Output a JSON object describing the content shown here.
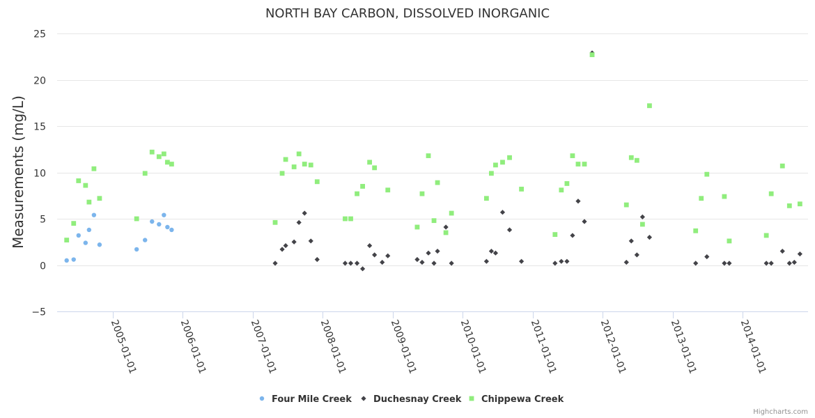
{
  "chart_data": {
    "type": "scatter",
    "title": "NORTH BAY CARBON, DISSOLVED INORGANIC",
    "xlabel": "",
    "ylabel": "Measurements (mg/L)",
    "ylim": [
      -5,
      25
    ],
    "yticks": [
      -5,
      0,
      5,
      10,
      15,
      20,
      25
    ],
    "xlim": [
      2004.25,
      2015.0
    ],
    "xticks": [
      {
        "value": 2005,
        "label": "2005-01-01"
      },
      {
        "value": 2006,
        "label": "2006-01-01"
      },
      {
        "value": 2007,
        "label": "2007-01-01"
      },
      {
        "value": 2008,
        "label": "2008-01-01"
      },
      {
        "value": 2009,
        "label": "2009-01-01"
      },
      {
        "value": 2010,
        "label": "2010-01-01"
      },
      {
        "value": 2011,
        "label": "2011-01-01"
      },
      {
        "value": 2012,
        "label": "2012-01-01"
      },
      {
        "value": 2013,
        "label": "2013-01-01"
      },
      {
        "value": 2014,
        "label": "2014-01-01"
      }
    ],
    "grid": "horizontal",
    "legend": "bottom-center",
    "series": [
      {
        "name": "Four Mile Creek",
        "color": "#7cb5ec",
        "marker": "circle",
        "points": [
          [
            2004.34,
            0.5
          ],
          [
            2004.44,
            0.6
          ],
          [
            2004.51,
            3.2
          ],
          [
            2004.61,
            2.4
          ],
          [
            2004.66,
            3.8
          ],
          [
            2004.73,
            5.4
          ],
          [
            2004.81,
            2.2
          ],
          [
            2005.34,
            1.7
          ],
          [
            2005.46,
            2.7
          ],
          [
            2005.56,
            4.7
          ],
          [
            2005.66,
            4.4
          ],
          [
            2005.73,
            5.4
          ],
          [
            2005.78,
            4.1
          ],
          [
            2005.84,
            3.8
          ]
        ]
      },
      {
        "name": "Duchesnay Creek",
        "color": "#434348",
        "marker": "diamond",
        "points": [
          [
            2007.32,
            0.2
          ],
          [
            2007.42,
            1.7
          ],
          [
            2007.47,
            2.1
          ],
          [
            2007.59,
            2.5
          ],
          [
            2007.66,
            4.6
          ],
          [
            2007.74,
            5.6
          ],
          [
            2007.83,
            2.6
          ],
          [
            2007.92,
            0.6
          ],
          [
            2008.32,
            0.2
          ],
          [
            2008.4,
            0.2
          ],
          [
            2008.49,
            0.2
          ],
          [
            2008.57,
            -0.4
          ],
          [
            2008.67,
            2.1
          ],
          [
            2008.74,
            1.1
          ],
          [
            2008.85,
            0.3
          ],
          [
            2008.93,
            1.0
          ],
          [
            2009.35,
            0.6
          ],
          [
            2009.42,
            0.3
          ],
          [
            2009.51,
            1.3
          ],
          [
            2009.59,
            0.2
          ],
          [
            2009.64,
            1.5
          ],
          [
            2009.76,
            4.1
          ],
          [
            2009.84,
            0.2
          ],
          [
            2010.34,
            0.4
          ],
          [
            2010.41,
            1.5
          ],
          [
            2010.47,
            1.3
          ],
          [
            2010.57,
            5.7
          ],
          [
            2010.67,
            3.8
          ],
          [
            2010.84,
            0.4
          ],
          [
            2011.32,
            0.2
          ],
          [
            2011.41,
            0.4
          ],
          [
            2011.49,
            0.4
          ],
          [
            2011.57,
            3.2
          ],
          [
            2011.65,
            6.9
          ],
          [
            2011.74,
            4.7
          ],
          [
            2011.85,
            22.9
          ],
          [
            2012.34,
            0.3
          ],
          [
            2012.41,
            2.6
          ],
          [
            2012.49,
            1.1
          ],
          [
            2012.57,
            5.2
          ],
          [
            2012.67,
            3.0
          ],
          [
            2013.33,
            0.2
          ],
          [
            2013.49,
            0.9
          ],
          [
            2013.74,
            0.2
          ],
          [
            2013.81,
            0.2
          ],
          [
            2014.34,
            0.2
          ],
          [
            2014.41,
            0.2
          ],
          [
            2014.57,
            1.5
          ],
          [
            2014.67,
            0.2
          ],
          [
            2014.74,
            0.3
          ],
          [
            2014.82,
            1.2
          ]
        ]
      },
      {
        "name": "Chippewa Creek",
        "color": "#90ed7d",
        "marker": "square",
        "points": [
          [
            2004.34,
            2.7
          ],
          [
            2004.44,
            4.5
          ],
          [
            2004.51,
            9.1
          ],
          [
            2004.61,
            8.6
          ],
          [
            2004.66,
            6.8
          ],
          [
            2004.73,
            10.4
          ],
          [
            2004.81,
            7.2
          ],
          [
            2005.34,
            5.0
          ],
          [
            2005.46,
            9.9
          ],
          [
            2005.56,
            12.2
          ],
          [
            2005.66,
            11.7
          ],
          [
            2005.73,
            12.0
          ],
          [
            2005.78,
            11.1
          ],
          [
            2005.84,
            10.9
          ],
          [
            2007.32,
            4.6
          ],
          [
            2007.42,
            9.9
          ],
          [
            2007.47,
            11.4
          ],
          [
            2007.59,
            10.6
          ],
          [
            2007.66,
            12.0
          ],
          [
            2007.74,
            10.9
          ],
          [
            2007.83,
            10.8
          ],
          [
            2007.92,
            9.0
          ],
          [
            2008.32,
            5.0
          ],
          [
            2008.4,
            5.0
          ],
          [
            2008.49,
            7.7
          ],
          [
            2008.57,
            8.5
          ],
          [
            2008.67,
            11.1
          ],
          [
            2008.74,
            10.5
          ],
          [
            2008.93,
            8.1
          ],
          [
            2009.35,
            4.1
          ],
          [
            2009.42,
            7.7
          ],
          [
            2009.51,
            11.8
          ],
          [
            2009.59,
            4.8
          ],
          [
            2009.64,
            8.9
          ],
          [
            2009.76,
            3.5
          ],
          [
            2009.84,
            5.6
          ],
          [
            2010.34,
            7.2
          ],
          [
            2010.41,
            9.9
          ],
          [
            2010.47,
            10.8
          ],
          [
            2010.57,
            11.1
          ],
          [
            2010.67,
            11.6
          ],
          [
            2010.84,
            8.2
          ],
          [
            2011.32,
            3.3
          ],
          [
            2011.41,
            8.1
          ],
          [
            2011.49,
            8.8
          ],
          [
            2011.57,
            11.8
          ],
          [
            2011.65,
            10.9
          ],
          [
            2011.74,
            10.9
          ],
          [
            2011.85,
            22.7
          ],
          [
            2012.34,
            6.5
          ],
          [
            2012.41,
            11.6
          ],
          [
            2012.49,
            11.3
          ],
          [
            2012.57,
            4.4
          ],
          [
            2012.67,
            17.2
          ],
          [
            2013.33,
            3.7
          ],
          [
            2013.41,
            7.2
          ],
          [
            2013.49,
            9.8
          ],
          [
            2013.74,
            7.4
          ],
          [
            2013.81,
            2.6
          ],
          [
            2014.34,
            3.2
          ],
          [
            2014.41,
            7.7
          ],
          [
            2014.57,
            10.7
          ],
          [
            2014.67,
            6.4
          ],
          [
            2014.82,
            6.6
          ]
        ]
      }
    ]
  },
  "credits": "Highcharts.com"
}
